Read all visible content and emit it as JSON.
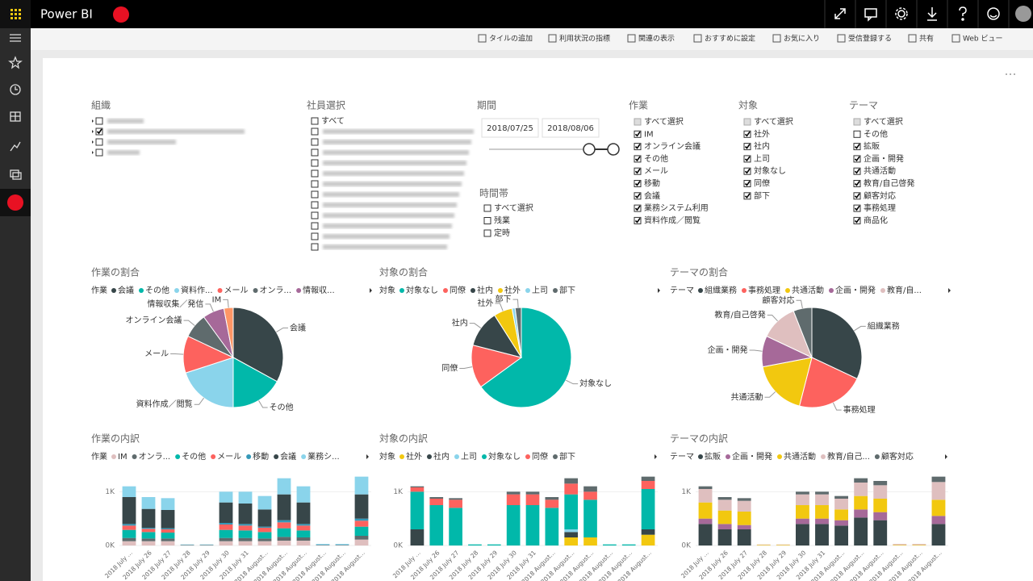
{
  "header": {
    "app_name": "Power BI"
  },
  "toolbar": [
    "タイルの追加",
    "利用状況の指標",
    "関連の表示",
    "おすすめに設定",
    "お気に入り",
    "受信登録する",
    "共有",
    "Web ビュー"
  ],
  "slicers": {
    "org": {
      "title": "組織"
    },
    "employee": {
      "title": "社員選択",
      "items": [
        {
          "label": "すべて",
          "state": "unchecked"
        }
      ]
    },
    "period": {
      "title": "期間",
      "start": "2018/07/25",
      "end": "2018/08/06"
    },
    "time_band": {
      "title": "時間帯",
      "items": [
        {
          "label": "すべて選択",
          "state": "unchecked"
        },
        {
          "label": "残業",
          "state": "unchecked"
        },
        {
          "label": "定時",
          "state": "unchecked"
        }
      ]
    },
    "work": {
      "title": "作業",
      "items": [
        {
          "label": "すべて選択",
          "state": "partial"
        },
        {
          "label": "IM",
          "state": "checked"
        },
        {
          "label": "オンライン会議",
          "state": "checked"
        },
        {
          "label": "その他",
          "state": "checked"
        },
        {
          "label": "メール",
          "state": "checked"
        },
        {
          "label": "移動",
          "state": "checked"
        },
        {
          "label": "会議",
          "state": "checked"
        },
        {
          "label": "業務システム利用",
          "state": "checked"
        },
        {
          "label": "資料作成／閲覧",
          "state": "checked"
        }
      ]
    },
    "target": {
      "title": "対象",
      "items": [
        {
          "label": "すべて選択",
          "state": "partial"
        },
        {
          "label": "社外",
          "state": "checked"
        },
        {
          "label": "社内",
          "state": "checked"
        },
        {
          "label": "上司",
          "state": "checked"
        },
        {
          "label": "対象なし",
          "state": "checked"
        },
        {
          "label": "同僚",
          "state": "checked"
        },
        {
          "label": "部下",
          "state": "checked"
        }
      ]
    },
    "theme": {
      "title": "テーマ",
      "items": [
        {
          "label": "すべて選択",
          "state": "partial"
        },
        {
          "label": "その他",
          "state": "unchecked"
        },
        {
          "label": "拡販",
          "state": "checked"
        },
        {
          "label": "企画・開発",
          "state": "checked"
        },
        {
          "label": "共通活動",
          "state": "checked"
        },
        {
          "label": "教育/自己啓発",
          "state": "checked"
        },
        {
          "label": "顧客対応",
          "state": "checked"
        },
        {
          "label": "事務処理",
          "state": "checked"
        },
        {
          "label": "商品化",
          "state": "checked"
        }
      ]
    }
  },
  "charts": {
    "pies": [
      {
        "type": "pie",
        "title": "作業の割合",
        "legend_title": "作業",
        "legend": [
          "会議",
          "その他",
          "資料作...",
          "メール",
          "オンラ...",
          "情報収..."
        ],
        "slices": [
          {
            "label": "会議",
            "value": 33,
            "color": "#374649"
          },
          {
            "label": "その他",
            "value": 17,
            "color": "#01B8AA"
          },
          {
            "label": "資料作成／閲覧",
            "value": 20,
            "color": "#8AD4EB"
          },
          {
            "label": "メール",
            "value": 12,
            "color": "#FD625E"
          },
          {
            "label": "オンライン会議",
            "value": 8,
            "color": "#5F6B6D"
          },
          {
            "label": "情報収集／発信",
            "value": 7,
            "color": "#A66999"
          },
          {
            "label": "IM",
            "value": 3,
            "color": "#FE9666"
          }
        ]
      },
      {
        "type": "pie",
        "title": "対象の割合",
        "legend_title": "対象",
        "legend": [
          "対象なし",
          "同僚",
          "社内",
          "社外",
          "上司",
          "部下"
        ],
        "slices": [
          {
            "label": "対象なし",
            "value": 65,
            "color": "#01B8AA"
          },
          {
            "label": "同僚",
            "value": 14,
            "color": "#FD625E"
          },
          {
            "label": "社内",
            "value": 12,
            "color": "#374649"
          },
          {
            "label": "社外",
            "value": 6,
            "color": "#F2C80F"
          },
          {
            "label": null,
            "value": 1,
            "color": "#8AD4EB"
          },
          {
            "label": "部下",
            "value": 2,
            "color": "#5F6B6D"
          }
        ]
      },
      {
        "type": "pie",
        "title": "テーマの割合",
        "legend_title": "テーマ",
        "legend": [
          "組織業務",
          "事務処理",
          "共通活動",
          "企画・開発",
          "教育/自..."
        ],
        "slices": [
          {
            "label": "組織業務",
            "value": 32,
            "color": "#374649"
          },
          {
            "label": "事務処理",
            "value": 22,
            "color": "#FD625E"
          },
          {
            "label": "共通活動",
            "value": 18,
            "color": "#F2C80F"
          },
          {
            "label": "企画・開発",
            "value": 10,
            "color": "#A66999"
          },
          {
            "label": "教育/自己啓発",
            "value": 12,
            "color": "#DFBFBF"
          },
          {
            "label": "顧客対応",
            "value": 6,
            "color": "#5F6B6D"
          }
        ]
      }
    ],
    "breakdowns": [
      {
        "type": "bar",
        "title": "作業の内訳",
        "legend_title": "作業",
        "grid": true,
        "categories": [
          "2018 July ...",
          "2018 July 26",
          "2018 July 27",
          "2018 July 28",
          "2018 July 29",
          "2018 July 30",
          "2018 July 31",
          "2018 August...",
          "2018 August...",
          "2018 August...",
          "2018 August...",
          "2018 August...",
          "2018 August..."
        ],
        "ylim": [
          0,
          1350
        ],
        "yticks": [
          {
            "value": 0,
            "label": "0K"
          },
          {
            "value": 1000,
            "label": "1K"
          }
        ],
        "series": [
          {
            "name": "IM",
            "color": "#DFBFBF",
            "values": [
              80,
              80,
              80,
              0,
              0,
              80,
              80,
              80,
              90,
              90,
              0,
              0,
              110
            ]
          },
          {
            "name": "オンラ...",
            "color": "#5F6B6D",
            "values": [
              60,
              50,
              50,
              10,
              10,
              60,
              60,
              50,
              70,
              60,
              10,
              10,
              70
            ]
          },
          {
            "name": "その他",
            "color": "#01B8AA",
            "values": [
              150,
              120,
              110,
              0,
              0,
              150,
              140,
              120,
              160,
              130,
              0,
              0,
              170
            ]
          },
          {
            "name": "メール",
            "color": "#FD625E",
            "values": [
              80,
              60,
              60,
              0,
              0,
              100,
              90,
              80,
              110,
              90,
              0,
              0,
              110
            ]
          },
          {
            "name": "移動",
            "color": "#3599B8",
            "values": [
              30,
              20,
              20,
              0,
              0,
              30,
              30,
              20,
              40,
              30,
              0,
              0,
              40
            ]
          },
          {
            "name": "会議",
            "color": "#374649",
            "values": [
              500,
              350,
              340,
              0,
              0,
              380,
              380,
              320,
              480,
              400,
              0,
              0,
              450
            ]
          },
          {
            "name": "業務シ...",
            "color": "#8AD4EB",
            "values": [
              200,
              220,
              220,
              10,
              10,
              200,
              220,
              250,
              300,
              300,
              20,
              20,
              330
            ]
          }
        ]
      },
      {
        "type": "bar",
        "title": "対象の内訳",
        "legend_title": "対象",
        "grid": true,
        "categories": [
          "2018 July ...",
          "2018 July 26",
          "2018 July 27",
          "2018 July 28",
          "2018 July 29",
          "2018 July 30",
          "2018 July 31",
          "2018 August...",
          "2018 August...",
          "2018 August...",
          "2018 August...",
          "2018 August...",
          "2018 August..."
        ],
        "ylim": [
          0,
          1350
        ],
        "yticks": [
          {
            "value": 0,
            "label": "0K"
          },
          {
            "value": 1000,
            "label": "1K"
          }
        ],
        "series": [
          {
            "name": "社外",
            "color": "#F2C80F",
            "values": [
              0,
              0,
              0,
              0,
              0,
              0,
              0,
              0,
              150,
              150,
              0,
              0,
              200
            ]
          },
          {
            "name": "社内",
            "color": "#374649",
            "values": [
              300,
              0,
              0,
              0,
              0,
              0,
              0,
              0,
              100,
              0,
              0,
              0,
              100
            ]
          },
          {
            "name": "上司",
            "color": "#8AD4EB",
            "values": [
              0,
              0,
              0,
              0,
              0,
              0,
              0,
              0,
              50,
              0,
              0,
              0,
              0
            ]
          },
          {
            "name": "対象なし",
            "color": "#01B8AA",
            "values": [
              700,
              750,
              700,
              20,
              20,
              750,
              750,
              700,
              650,
              700,
              20,
              20,
              750
            ]
          },
          {
            "name": "同僚",
            "color": "#FD625E",
            "values": [
              80,
              120,
              150,
              0,
              0,
              200,
              200,
              150,
              200,
              150,
              0,
              0,
              150
            ]
          },
          {
            "name": "部下",
            "color": "#5F6B6D",
            "values": [
              20,
              30,
              30,
              0,
              0,
              50,
              50,
              50,
              100,
              100,
              0,
              0,
              80
            ]
          }
        ]
      },
      {
        "type": "bar",
        "title": "テーマの内訳",
        "legend_title": "テーマ",
        "grid": true,
        "categories": [
          "2018 July ...",
          "2018 July 26",
          "2018 July 27",
          "2018 July 28",
          "2018 July 29",
          "2018 July 30",
          "2018 July 31",
          "2018 August...",
          "2018 August...",
          "2018 August...",
          "2018 August...",
          "2018 August...",
          "2018 August..."
        ],
        "ylim": [
          0,
          1350
        ],
        "yticks": [
          {
            "value": 0,
            "label": "0K"
          },
          {
            "value": 1000,
            "label": "1K"
          }
        ],
        "series": [
          {
            "name": "拡販",
            "color": "#374649",
            "values": [
              400,
              300,
              300,
              0,
              0,
              400,
              400,
              370,
              520,
              470,
              0,
              0,
              400
            ]
          },
          {
            "name": "企画・開発",
            "color": "#A66999",
            "values": [
              100,
              100,
              80,
              0,
              0,
              100,
              100,
              100,
              150,
              150,
              0,
              0,
              150
            ]
          },
          {
            "name": "共通活動",
            "color": "#F2C80F",
            "values": [
              300,
              250,
              250,
              10,
              10,
              250,
              250,
              200,
              250,
              250,
              10,
              10,
              300
            ]
          },
          {
            "name": "教育/自己...",
            "color": "#DFBFBF",
            "values": [
              250,
              200,
              200,
              10,
              10,
              200,
              200,
              200,
              250,
              250,
              20,
              20,
              330
            ]
          },
          {
            "name": "顧客対応",
            "color": "#5F6B6D",
            "values": [
              50,
              50,
              50,
              0,
              0,
              50,
              50,
              50,
              80,
              80,
              0,
              0,
              100
            ]
          }
        ]
      }
    ]
  }
}
